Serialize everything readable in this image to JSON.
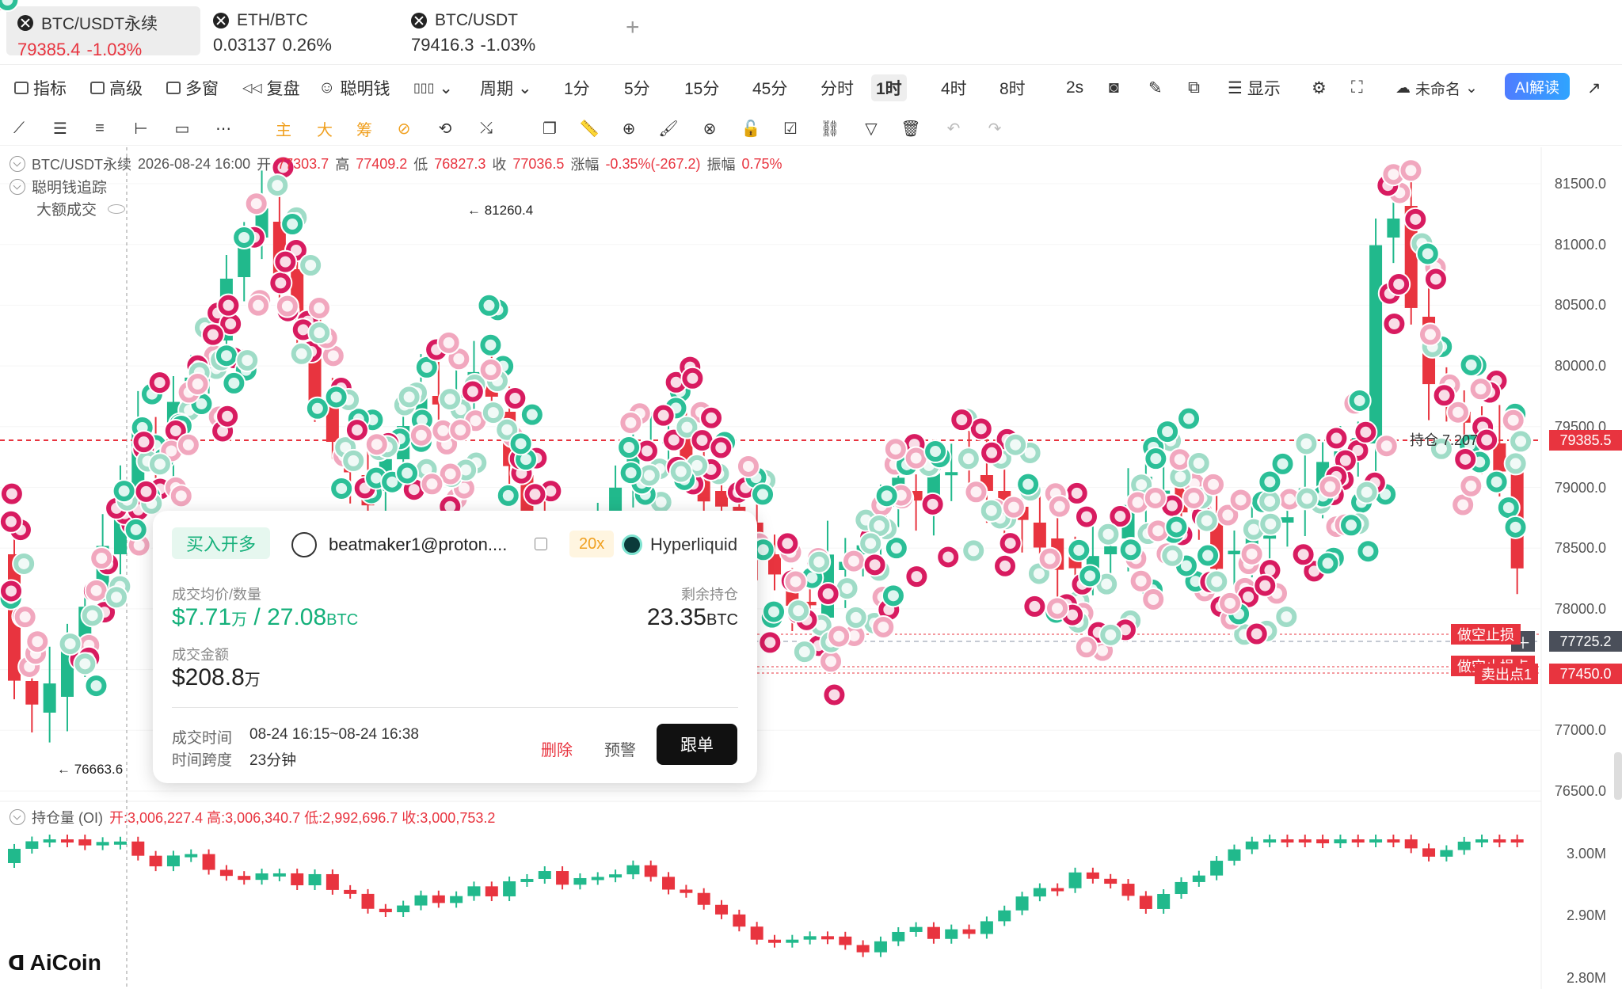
{
  "tabs": [
    {
      "symbol": "BTC/USDT永续",
      "price": "79385.4",
      "change": "-1.03%",
      "active": true
    },
    {
      "symbol": "ETH/BTC",
      "price": "0.03137",
      "change": "0.26%",
      "active": false
    },
    {
      "symbol": "BTC/USDT",
      "price": "79416.3",
      "change": "-1.03%",
      "active": false
    }
  ],
  "add_tab": "+",
  "menu": {
    "indicators": "指标",
    "advanced": "高级",
    "multi_window": "多窗",
    "replay": "复盘",
    "smart_money": "聪明钱",
    "period": "周期",
    "tf_1m": "1分",
    "tf_5m": "5分",
    "tf_15m": "15分",
    "tf_45m": "45分",
    "tf_time": "分时",
    "tf_1h": "1时",
    "tf_4h": "4时",
    "tf_8h": "8时",
    "tf_2s": "2s",
    "display": "显示",
    "unnamed": "未命名",
    "ai_read": "AI解读"
  },
  "toolbar": {
    "main": "主",
    "big": "大",
    "chip": "筹"
  },
  "legend": {
    "symbol": "BTC/USDT永续",
    "datetime": "2026-08-24 16:00",
    "open_label": "开",
    "open": "77303.7",
    "high_label": "高",
    "high": "77409.2",
    "low_label": "低",
    "low": "76827.3",
    "close_label": "收",
    "close": "77036.5",
    "change_label": "涨幅",
    "change": "-0.35%(-267.2)",
    "amp_label": "振幅",
    "amp": "0.75%",
    "tracker": "聪明钱追踪",
    "big_trades": "大额成交"
  },
  "price_axis": [
    "81500.0",
    "81000.0",
    "80500.0",
    "80000.0",
    "79500.0",
    "79000.0",
    "78500.0",
    "78000.0",
    "77500.0",
    "77000.0",
    "76500.0"
  ],
  "current_price_tag": "79385.5",
  "cross_price_tag": "77725.2",
  "order_price_tag": "77450.0",
  "short_stop_label": "做空止损",
  "short_stop_label2": "做空止损点",
  "sell_point_label": "卖出点1",
  "position_label": "持仓 7.207",
  "high_marker": "← 81260.4",
  "low_marker": "← 76663.6",
  "oi_legend": {
    "label": "持仓量 (OI)",
    "text": "开:3,006,227.4 高:3,006,340.7 低:2,992,696.7 收:3,000,753.2"
  },
  "oi_axis": [
    "3.00M",
    "2.90M",
    "2.80M"
  ],
  "popup": {
    "badge": "买入开多",
    "user": "beatmaker1@proton....",
    "leverage": "20x",
    "exchange": "Hyperliquid",
    "avg_qty_label": "成交均价/数量",
    "avg_price": "$7.71",
    "avg_unit": "万",
    "slash": " / ",
    "qty": "27.08",
    "qty_unit": "BTC",
    "remain_label": "剩余持仓",
    "remain": "23.35",
    "remain_unit": "BTC",
    "amount_label": "成交金额",
    "amount": "$208.8",
    "amount_unit": "万",
    "time_label": "成交时间",
    "time": "08-24 16:15~08-24 16:38",
    "span_label": "时间跨度",
    "span": "23分钟",
    "delete": "删除",
    "alert": "预警",
    "follow": "跟单"
  },
  "logo": "AiCoin",
  "colors": {
    "up": "#21b98c",
    "down": "#e8343f",
    "bubble_pink": "#d81b60",
    "bubble_teal": "#2bbf97"
  }
}
